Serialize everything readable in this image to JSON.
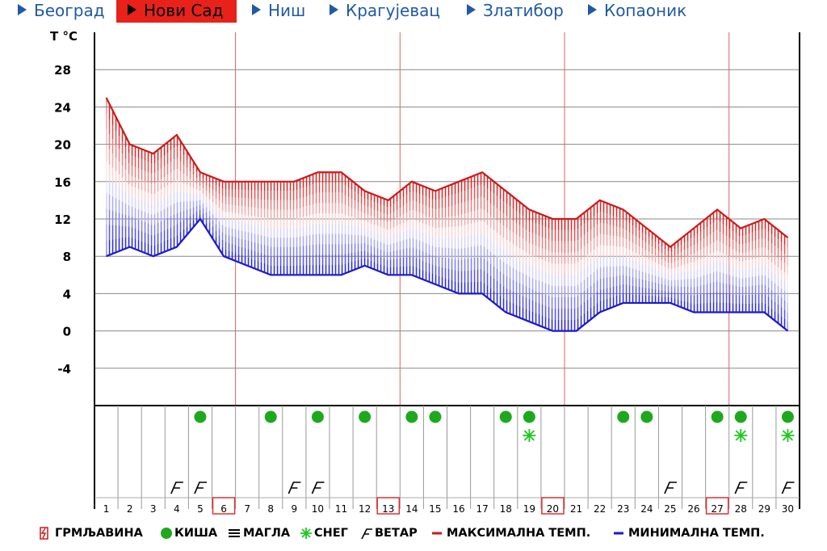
{
  "nav": {
    "items": [
      {
        "label": "Београд",
        "active": false
      },
      {
        "label": "Нови Сад",
        "active": true
      },
      {
        "label": "Ниш",
        "active": false
      },
      {
        "label": "Крагујевац",
        "active": false
      },
      {
        "label": "Златибор",
        "active": false
      },
      {
        "label": "Копаоник",
        "active": false
      }
    ]
  },
  "colors": {
    "max_line": "#cc1a1a",
    "min_line": "#1a1acc",
    "rain": "#1ea81e",
    "snow": "#1ec81e",
    "grid": "#000000",
    "week_line": "#e06060"
  },
  "chart_data": {
    "type": "line",
    "ylabel": "T °C",
    "ylim": [
      -8,
      32
    ],
    "yticks": [
      -4,
      0,
      4,
      8,
      12,
      16,
      20,
      24,
      28
    ],
    "x": [
      1,
      2,
      3,
      4,
      5,
      6,
      7,
      8,
      9,
      10,
      11,
      12,
      13,
      14,
      15,
      16,
      17,
      18,
      19,
      20,
      21,
      22,
      23,
      24,
      25,
      26,
      27,
      28,
      29,
      30
    ],
    "highlighted_days": [
      6,
      13,
      20,
      27
    ],
    "series": [
      {
        "name": "МАКСИМАЛНА ТЕМП.",
        "values": [
          25,
          20,
          19,
          21,
          17,
          16,
          16,
          16,
          16,
          17,
          17,
          15,
          14,
          16,
          15,
          16,
          17,
          15,
          13,
          12,
          12,
          14,
          13,
          11,
          9,
          11,
          13,
          11,
          12,
          10
        ]
      },
      {
        "name": "МИНИМАЛНА ТЕМП.",
        "values": [
          8,
          9,
          8,
          9,
          12,
          8,
          7,
          6,
          6,
          6,
          6,
          7,
          6,
          6,
          5,
          4,
          4,
          2,
          1,
          0,
          0,
          2,
          3,
          3,
          3,
          2,
          2,
          2,
          2,
          0
        ]
      }
    ],
    "weather": {
      "rain_days": [
        5,
        8,
        10,
        12,
        14,
        15,
        18,
        19,
        23,
        24,
        27,
        28,
        30
      ],
      "snow_days": [
        19,
        28,
        30
      ],
      "wind_days": [
        4,
        5,
        9,
        10,
        25,
        28,
        30
      ]
    }
  },
  "legend": {
    "thunder": "ГРМЉАВИНА",
    "rain": "КИША",
    "fog": "МАГЛА",
    "snow": "СНЕГ",
    "wind": "ВЕТАР",
    "max": "МАКСИМАЛНА ТЕМП.",
    "min": "МИНИМАЛНА ТЕМП."
  }
}
